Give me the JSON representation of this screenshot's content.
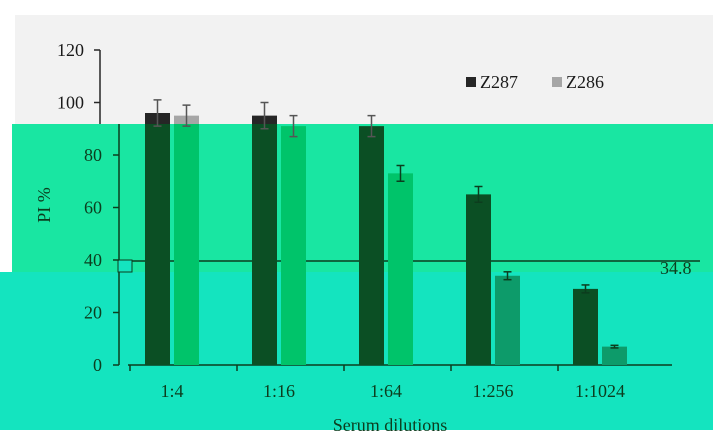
{
  "chart_data": {
    "type": "bar",
    "title": "",
    "xlabel": "Serum dilutions",
    "ylabel": "PI %",
    "ylim": [
      0,
      120
    ],
    "yticks": [
      "0",
      "20",
      "40",
      "60",
      "80",
      "100",
      "120"
    ],
    "categories": [
      "1:4",
      "1:16",
      "1:64",
      "1:256",
      "1:1024"
    ],
    "series": [
      {
        "name": "Z287",
        "values": [
          96,
          95,
          91,
          65,
          29
        ],
        "errors": [
          5,
          5,
          4,
          3,
          1.5
        ]
      },
      {
        "name": "Z286",
        "values": [
          95,
          91,
          73,
          34,
          7
        ],
        "errors": [
          4,
          4,
          3,
          1.5,
          0.5
        ]
      }
    ],
    "legend_position": "top-right",
    "grid": false,
    "annotation": "34.8",
    "colors": {
      "panel_top": "#f2f2f2",
      "overlay": "#19e6a2",
      "overlay_lower": "#14e4bf",
      "z287": "#262626",
      "z286": "#a6a6a6",
      "z287_over": "#0b4f24",
      "z286_over": "#00c46a",
      "z286_over_lower": "#0d9b6a",
      "axis_top": "#262626",
      "axis_over": "#0c3d1e"
    }
  }
}
